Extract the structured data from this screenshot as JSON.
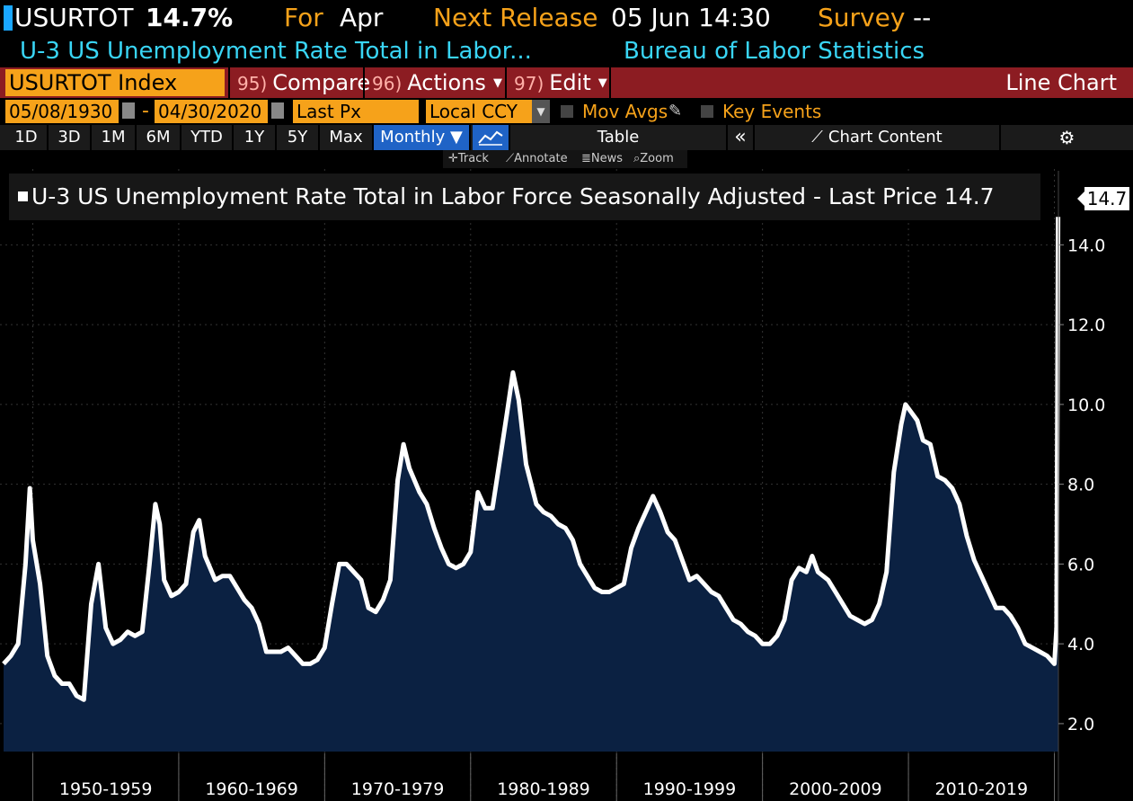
{
  "header": {
    "ticker": "USURTOT",
    "value": "14.7%",
    "for_label": "For",
    "for_value": "Apr",
    "release_label": "Next Release",
    "release_value": "05 Jun 14:30",
    "survey_label": "Survey",
    "survey_value": "--",
    "description": "U-3 US Unemployment Rate Total in Labor...",
    "source": "Bureau of Labor Statistics"
  },
  "commandbar": {
    "security": "USURTOT Index",
    "compare": {
      "num": "95)",
      "label": "Compare"
    },
    "actions": {
      "num": "96)",
      "label": "Actions"
    },
    "edit": {
      "num": "97)",
      "label": "Edit"
    },
    "chart_type": "Line Chart"
  },
  "params": {
    "start_date": "05/08/1930",
    "separator": "-",
    "end_date": "04/30/2020",
    "field": "Last Px",
    "currency": "Local CCY",
    "mov_avgs": "Mov Avgs",
    "key_events": "Key Events"
  },
  "periods": [
    "1D",
    "3D",
    "1M",
    "6M",
    "YTD",
    "1Y",
    "5Y",
    "Max"
  ],
  "frequency": "Monthly ▼",
  "table_label": "Table",
  "chart_content_label": "Chart Content",
  "tools": {
    "track": "Track",
    "annotate": "Annotate",
    "news": "News",
    "zoom": "Zoom"
  },
  "legend": "U-3 US Unemployment Rate Total in Labor Force Seasonally Adjusted - Last Price 14.7",
  "last_value_label": "14.7",
  "colors": {
    "line": "#ffffff",
    "fill": "#0b2142",
    "accent": "#f6a21a",
    "header_cyan": "#39d5f5",
    "bar_red": "#8c1c22",
    "active_blue": "#1f63c6"
  },
  "chart_data": {
    "type": "area",
    "ylim": [
      1.3,
      15.9
    ],
    "yticks": [
      "2.0",
      "4.0",
      "6.0",
      "8.0",
      "10.0",
      "12.0",
      "14.0"
    ],
    "ytick_values": [
      2,
      4,
      6,
      8,
      10,
      12,
      14
    ],
    "decade_labels": [
      "1950-1959",
      "1960-1969",
      "1970-1979",
      "1980-1989",
      "1990-1999",
      "2000-2009",
      "2010-2019"
    ],
    "decade_starts": [
      1950,
      1960,
      1970,
      1980,
      1990,
      2000,
      2010
    ],
    "xlim": [
      1948.0,
      2020.4
    ],
    "x": [
      1948.0,
      1948.5,
      1949.0,
      1949.5,
      1949.8,
      1950.0,
      1950.5,
      1951.0,
      1951.5,
      1952.0,
      1952.5,
      1953.0,
      1953.5,
      1954.0,
      1954.5,
      1955.0,
      1955.5,
      1956.0,
      1956.5,
      1957.0,
      1957.5,
      1958.0,
      1958.4,
      1958.7,
      1959.0,
      1959.5,
      1960.0,
      1960.5,
      1961.0,
      1961.4,
      1961.8,
      1962.5,
      1963.0,
      1963.5,
      1964.0,
      1964.5,
      1965.0,
      1965.5,
      1966.0,
      1966.5,
      1967.0,
      1967.5,
      1968.0,
      1968.5,
      1969.0,
      1969.5,
      1970.0,
      1970.5,
      1971.0,
      1971.5,
      1972.0,
      1972.5,
      1973.0,
      1973.5,
      1974.0,
      1974.5,
      1975.0,
      1975.4,
      1975.8,
      1976.5,
      1977.0,
      1977.5,
      1978.0,
      1978.5,
      1979.0,
      1979.5,
      1980.0,
      1980.5,
      1981.0,
      1981.5,
      1982.0,
      1982.5,
      1982.9,
      1983.3,
      1983.8,
      1984.5,
      1985.0,
      1985.5,
      1986.0,
      1986.5,
      1987.0,
      1987.5,
      1988.0,
      1988.5,
      1989.0,
      1989.5,
      1990.0,
      1990.5,
      1991.0,
      1991.5,
      1992.0,
      1992.5,
      1993.0,
      1993.5,
      1994.0,
      1994.5,
      1995.0,
      1995.5,
      1996.0,
      1996.5,
      1997.0,
      1997.5,
      1998.0,
      1998.5,
      1999.0,
      1999.5,
      2000.0,
      2000.5,
      2001.0,
      2001.5,
      2002.0,
      2002.5,
      2003.0,
      2003.4,
      2003.8,
      2004.5,
      2005.0,
      2005.5,
      2006.0,
      2006.5,
      2007.0,
      2007.5,
      2008.0,
      2008.5,
      2009.0,
      2009.5,
      2009.8,
      2010.2,
      2010.6,
      2011.0,
      2011.5,
      2012.0,
      2012.5,
      2013.0,
      2013.5,
      2014.0,
      2014.5,
      2015.0,
      2015.5,
      2016.0,
      2016.5,
      2017.0,
      2017.5,
      2018.0,
      2018.5,
      2019.0,
      2019.5,
      2020.0,
      2020.15,
      2020.25
    ],
    "values": [
      3.5,
      3.7,
      4.0,
      6.0,
      7.9,
      6.6,
      5.5,
      3.7,
      3.2,
      3.0,
      3.0,
      2.7,
      2.6,
      5.0,
      6.0,
      4.4,
      4.0,
      4.1,
      4.3,
      4.2,
      4.3,
      6.0,
      7.5,
      7.0,
      5.6,
      5.2,
      5.3,
      5.5,
      6.8,
      7.1,
      6.2,
      5.6,
      5.7,
      5.7,
      5.4,
      5.1,
      4.9,
      4.5,
      3.8,
      3.8,
      3.8,
      3.9,
      3.7,
      3.5,
      3.5,
      3.6,
      3.9,
      5.0,
      6.0,
      6.0,
      5.8,
      5.6,
      4.9,
      4.8,
      5.1,
      5.6,
      8.1,
      9.0,
      8.4,
      7.8,
      7.5,
      6.9,
      6.4,
      6.0,
      5.9,
      6.0,
      6.3,
      7.8,
      7.4,
      7.4,
      8.6,
      9.8,
      10.8,
      10.1,
      8.5,
      7.5,
      7.3,
      7.2,
      7.0,
      6.9,
      6.6,
      6.0,
      5.7,
      5.4,
      5.3,
      5.3,
      5.4,
      5.5,
      6.4,
      6.9,
      7.3,
      7.7,
      7.3,
      6.8,
      6.6,
      6.1,
      5.6,
      5.7,
      5.5,
      5.3,
      5.2,
      4.9,
      4.6,
      4.5,
      4.3,
      4.2,
      4.0,
      4.0,
      4.2,
      4.6,
      5.6,
      5.9,
      5.8,
      6.2,
      5.8,
      5.6,
      5.3,
      5.0,
      4.7,
      4.6,
      4.5,
      4.6,
      5.0,
      5.8,
      8.3,
      9.5,
      10.0,
      9.8,
      9.6,
      9.1,
      9.0,
      8.2,
      8.1,
      7.9,
      7.5,
      6.7,
      6.1,
      5.7,
      5.3,
      4.9,
      4.9,
      4.7,
      4.4,
      4.0,
      3.9,
      3.8,
      3.7,
      3.5,
      4.4,
      14.7
    ]
  }
}
